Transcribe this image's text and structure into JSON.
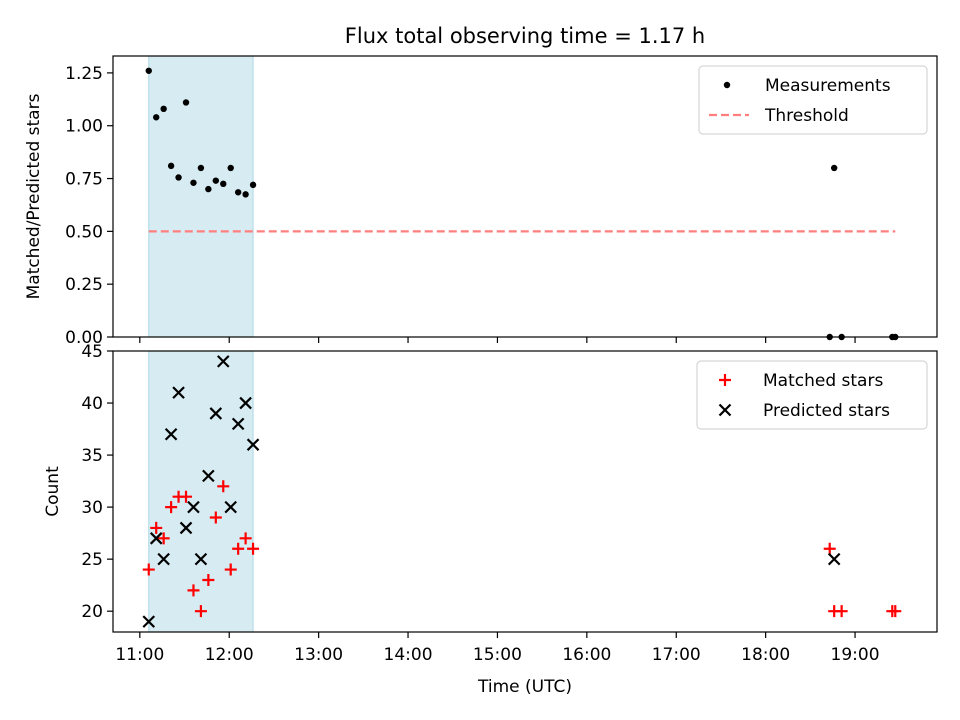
{
  "figure": {
    "title": "Flux total observing time = 1.17 h"
  },
  "chart_data": [
    {
      "type": "scatter",
      "ylabel": "Matched/Predicted stars",
      "xlabel": "",
      "xlim": [
        "10:42",
        "19:55"
      ],
      "ylim": [
        0,
        1.33
      ],
      "yticks": [
        "0.00",
        "0.25",
        "0.50",
        "0.75",
        "1.00",
        "1.25"
      ],
      "highlight_span": {
        "from": "11:06",
        "to": "12:16",
        "color": "#add8e6"
      },
      "legend_position": "top-right",
      "series": [
        {
          "name": "Measurements",
          "marker": "dot",
          "color": "#000000",
          "points": [
            {
              "x": "11:06",
              "y": 1.26
            },
            {
              "x": "11:11",
              "y": 1.04
            },
            {
              "x": "11:16",
              "y": 1.08
            },
            {
              "x": "11:21",
              "y": 0.81
            },
            {
              "x": "11:26",
              "y": 0.755
            },
            {
              "x": "11:31",
              "y": 1.11
            },
            {
              "x": "11:36",
              "y": 0.73
            },
            {
              "x": "11:41",
              "y": 0.8
            },
            {
              "x": "11:46",
              "y": 0.7
            },
            {
              "x": "11:51",
              "y": 0.74
            },
            {
              "x": "11:56",
              "y": 0.725
            },
            {
              "x": "12:01",
              "y": 0.8
            },
            {
              "x": "12:06",
              "y": 0.685
            },
            {
              "x": "12:11",
              "y": 0.675
            },
            {
              "x": "12:16",
              "y": 0.72
            },
            {
              "x": "18:43",
              "y": 0.0
            },
            {
              "x": "18:46",
              "y": 0.8
            },
            {
              "x": "18:51",
              "y": 0.0
            },
            {
              "x": "19:25",
              "y": 0.0
            },
            {
              "x": "19:27",
              "y": 0.0
            }
          ]
        },
        {
          "name": "Threshold",
          "marker": "dashed-line",
          "color": "#ff7f7f",
          "points": [
            {
              "x": "11:06",
              "y": 0.5
            },
            {
              "x": "19:27",
              "y": 0.5
            }
          ]
        }
      ]
    },
    {
      "type": "scatter",
      "ylabel": "Count",
      "xlabel": "Time (UTC)",
      "xlim": [
        "10:42",
        "19:55"
      ],
      "ylim": [
        18,
        45
      ],
      "yticks": [
        "20",
        "25",
        "30",
        "35",
        "40",
        "45"
      ],
      "xticks": [
        "11:00",
        "12:00",
        "13:00",
        "14:00",
        "15:00",
        "16:00",
        "17:00",
        "18:00",
        "19:00"
      ],
      "highlight_span": {
        "from": "11:06",
        "to": "12:16",
        "color": "#add8e6"
      },
      "legend_position": "top-right",
      "series": [
        {
          "name": "Matched stars",
          "marker": "plus",
          "color": "#ff0000",
          "points": [
            {
              "x": "11:06",
              "y": 24
            },
            {
              "x": "11:11",
              "y": 28
            },
            {
              "x": "11:16",
              "y": 27
            },
            {
              "x": "11:21",
              "y": 30
            },
            {
              "x": "11:26",
              "y": 31
            },
            {
              "x": "11:31",
              "y": 31
            },
            {
              "x": "11:36",
              "y": 22
            },
            {
              "x": "11:41",
              "y": 20
            },
            {
              "x": "11:46",
              "y": 23
            },
            {
              "x": "11:51",
              "y": 29
            },
            {
              "x": "11:56",
              "y": 32
            },
            {
              "x": "12:01",
              "y": 24
            },
            {
              "x": "12:06",
              "y": 26
            },
            {
              "x": "12:11",
              "y": 27
            },
            {
              "x": "12:16",
              "y": 26
            },
            {
              "x": "18:43",
              "y": 26
            },
            {
              "x": "18:46",
              "y": 20
            },
            {
              "x": "18:51",
              "y": 20
            },
            {
              "x": "19:25",
              "y": 20
            },
            {
              "x": "19:27",
              "y": 20
            }
          ]
        },
        {
          "name": "Predicted stars",
          "marker": "x",
          "color": "#000000",
          "points": [
            {
              "x": "11:06",
              "y": 19
            },
            {
              "x": "11:11",
              "y": 27
            },
            {
              "x": "11:16",
              "y": 25
            },
            {
              "x": "11:21",
              "y": 37
            },
            {
              "x": "11:26",
              "y": 41
            },
            {
              "x": "11:31",
              "y": 28
            },
            {
              "x": "11:36",
              "y": 30
            },
            {
              "x": "11:41",
              "y": 25
            },
            {
              "x": "11:46",
              "y": 33
            },
            {
              "x": "11:51",
              "y": 39
            },
            {
              "x": "11:56",
              "y": 44
            },
            {
              "x": "12:01",
              "y": 30
            },
            {
              "x": "12:06",
              "y": 38
            },
            {
              "x": "12:11",
              "y": 40
            },
            {
              "x": "12:16",
              "y": 36
            },
            {
              "x": "18:46",
              "y": 25
            }
          ]
        }
      ]
    }
  ]
}
